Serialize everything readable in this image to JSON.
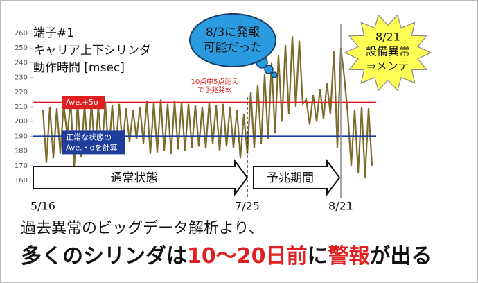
{
  "chart_data": {
    "type": "line",
    "title_lines": [
      "端子#1",
      "キャリア上下シリンダ",
      "動作時間 [msec]"
    ],
    "color": "#7d6b2b",
    "ylim": [
      155,
      265
    ],
    "yticks": [
      160,
      170,
      180,
      190,
      200,
      210,
      220,
      230,
      240,
      250,
      260
    ],
    "categories": [
      "5/16",
      null,
      null,
      null,
      null,
      null,
      null,
      null,
      null,
      null,
      null,
      null,
      null,
      null,
      null,
      null,
      null,
      null,
      null,
      null,
      null,
      null,
      null,
      null,
      null,
      null,
      null,
      null,
      null,
      null,
      null,
      null,
      null,
      null,
      null,
      null,
      null,
      null,
      null,
      null,
      null,
      null,
      null,
      null,
      null,
      null,
      null,
      null,
      null,
      null,
      null,
      null,
      null,
      null,
      null,
      null,
      null,
      null,
      null,
      "7/25",
      null,
      null,
      null,
      null,
      null,
      null,
      null,
      null,
      null,
      null,
      null,
      null,
      null,
      null,
      null,
      null,
      null,
      null,
      null,
      null,
      null,
      null,
      null,
      null,
      null,
      null,
      "8/21",
      null,
      null,
      null,
      null,
      null,
      null,
      null,
      null,
      null
    ],
    "values": [
      208,
      172,
      210,
      175,
      209,
      178,
      212,
      190,
      214,
      168,
      213,
      176,
      211,
      178,
      212,
      179,
      210,
      180,
      213,
      178,
      211,
      180,
      212,
      183,
      209,
      186,
      208,
      188,
      210,
      185,
      214,
      178,
      213,
      179,
      215,
      180,
      212,
      178,
      214,
      181,
      213,
      180,
      212,
      182,
      211,
      183,
      210,
      182,
      213,
      185,
      211,
      180,
      212,
      183,
      210,
      182,
      208,
      175,
      205,
      178,
      220,
      182,
      225,
      185,
      232,
      188,
      240,
      192,
      245,
      200,
      252,
      205,
      258,
      210,
      255,
      212,
      215,
      198,
      218,
      200,
      222,
      202,
      226,
      205,
      248,
      182,
      250,
      230,
      205,
      170,
      208,
      165,
      210,
      162,
      209,
      170
    ],
    "reference_lines": [
      {
        "value": 213,
        "label_lines": [
          "Ave.+5σ"
        ],
        "color": "#e02020"
      },
      {
        "value": 190,
        "label_lines": [
          "正常な状態の",
          "Ave.・σを計算"
        ],
        "color": "#1f3e9c"
      }
    ],
    "alert_note": [
      "10点中5点超え",
      "で予兆発報"
    ],
    "bubble": [
      "8/3に発報",
      "可能だった"
    ],
    "burst": [
      "8/21",
      "設備異常",
      "⇒メンテ"
    ],
    "periods": [
      "通常状態",
      "予兆期間"
    ]
  },
  "footer": {
    "line1": "過去異常のビッグデータ解析より、",
    "line2": [
      {
        "text": "多くのシリンダは",
        "color": "#111111"
      },
      {
        "text": "10〜20日前",
        "color": "#e02020"
      },
      {
        "text": "に",
        "color": "#111111"
      },
      {
        "text": "警報",
        "color": "#e02020"
      },
      {
        "text": "が出る",
        "color": "#111111"
      }
    ]
  }
}
